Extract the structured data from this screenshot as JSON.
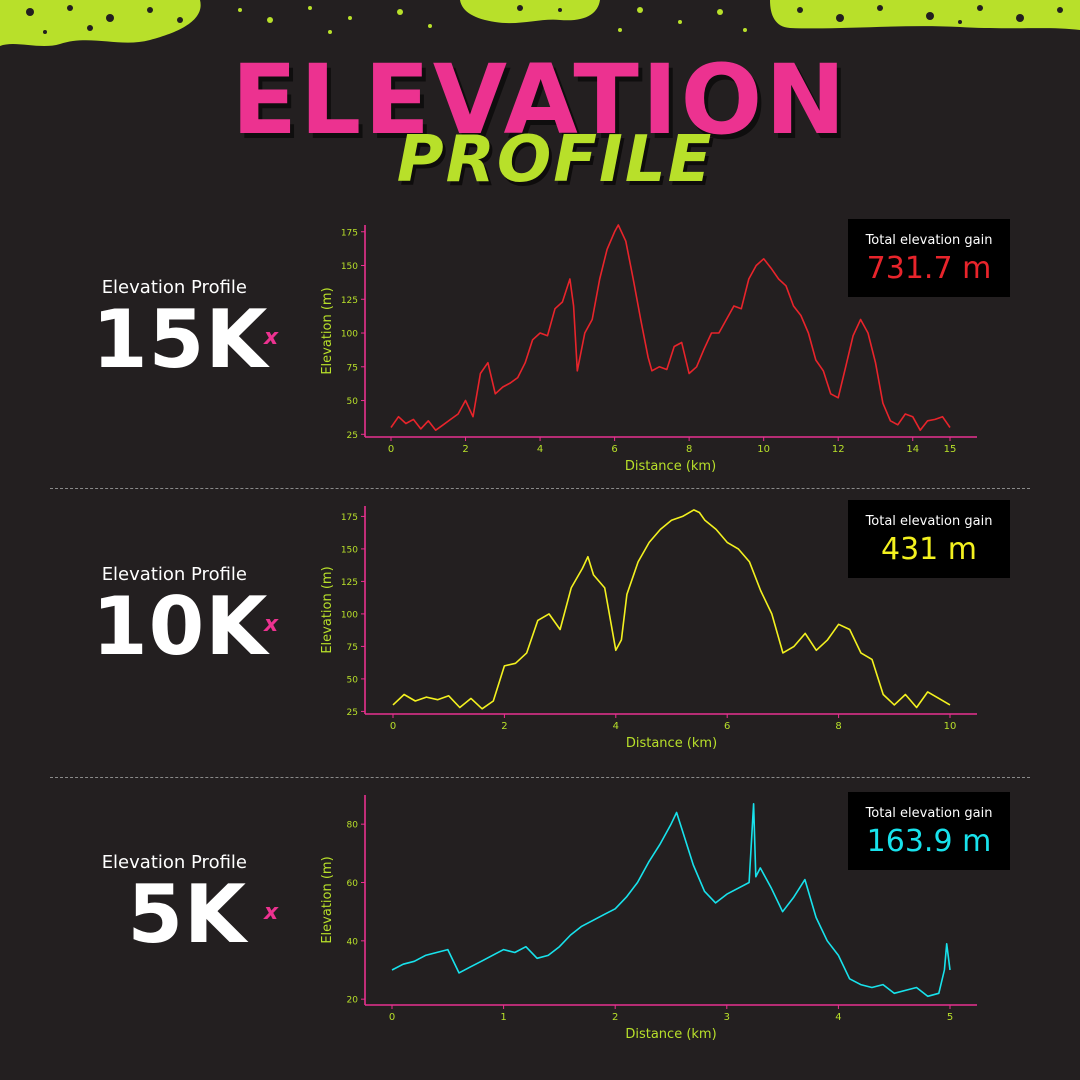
{
  "title": "ELEVATION",
  "subtitle": "PROFILE",
  "colors": {
    "background": "#231f20",
    "pink": "#ec3290",
    "lime": "#b8e02a",
    "axis": "#e8318f",
    "red": "#e8242b",
    "yellow": "#f3f11f",
    "cyan": "#18e2ec"
  },
  "rows": [
    {
      "label": "Elevation Profile",
      "distance": "15K",
      "mark": "x",
      "gain_label": "Total elevation gain",
      "gain_value": "731.7 m"
    },
    {
      "label": "Elevation Profile",
      "distance": "10K",
      "mark": "x",
      "gain_label": "Total elevation gain",
      "gain_value": "431 m"
    },
    {
      "label": "Elevation Profile",
      "distance": "5K",
      "mark": "x",
      "gain_label": "Total elevation gain",
      "gain_value": "163.9 m"
    }
  ],
  "chart_data": [
    {
      "type": "line",
      "xlabel": "Distance (km)",
      "ylabel": "Elevation (m)",
      "color": "#e8242b",
      "xlim": [
        0,
        15
      ],
      "ylim": [
        23,
        180
      ],
      "xticks": [
        0,
        2,
        4,
        6,
        8,
        10,
        12,
        14,
        15
      ],
      "yticks": [
        25,
        50,
        75,
        100,
        125,
        150,
        175
      ],
      "x": [
        0,
        0.2,
        0.4,
        0.6,
        0.8,
        1.0,
        1.2,
        1.4,
        1.6,
        1.8,
        2.0,
        2.2,
        2.4,
        2.6,
        2.8,
        3.0,
        3.2,
        3.4,
        3.6,
        3.8,
        4.0,
        4.2,
        4.4,
        4.6,
        4.8,
        4.9,
        5.0,
        5.2,
        5.4,
        5.6,
        5.8,
        6.0,
        6.1,
        6.3,
        6.5,
        6.7,
        6.9,
        7.0,
        7.2,
        7.4,
        7.6,
        7.8,
        8.0,
        8.2,
        8.4,
        8.6,
        8.8,
        9.0,
        9.2,
        9.4,
        9.6,
        9.8,
        10.0,
        10.2,
        10.4,
        10.6,
        10.8,
        11.0,
        11.2,
        11.4,
        11.6,
        11.8,
        12.0,
        12.2,
        12.4,
        12.6,
        12.8,
        13.0,
        13.2,
        13.4,
        13.6,
        13.8,
        14.0,
        14.2,
        14.4,
        14.6,
        14.8,
        15.0
      ],
      "y": [
        30,
        38,
        33,
        36,
        29,
        35,
        28,
        32,
        36,
        40,
        50,
        38,
        70,
        78,
        55,
        60,
        63,
        67,
        78,
        95,
        100,
        98,
        118,
        123,
        140,
        120,
        72,
        100,
        110,
        140,
        162,
        175,
        180,
        168,
        140,
        110,
        82,
        72,
        75,
        73,
        90,
        93,
        70,
        75,
        88,
        100,
        100,
        110,
        120,
        118,
        140,
        150,
        155,
        148,
        140,
        135,
        120,
        113,
        100,
        80,
        72,
        55,
        52,
        75,
        98,
        110,
        100,
        78,
        48,
        35,
        32,
        40,
        38,
        28,
        35,
        36,
        38,
        30
      ]
    },
    {
      "type": "line",
      "xlabel": "Distance (km)",
      "ylabel": "Elevation (m)",
      "color": "#f3f11f",
      "xlim": [
        0,
        10
      ],
      "ylim": [
        23,
        183
      ],
      "xticks": [
        0,
        2,
        4,
        6,
        8,
        10
      ],
      "yticks": [
        25,
        50,
        75,
        100,
        125,
        150,
        175
      ],
      "x": [
        0,
        0.2,
        0.4,
        0.6,
        0.8,
        1.0,
        1.2,
        1.4,
        1.6,
        1.8,
        2.0,
        2.2,
        2.4,
        2.6,
        2.8,
        3.0,
        3.2,
        3.4,
        3.5,
        3.6,
        3.8,
        4.0,
        4.1,
        4.2,
        4.4,
        4.6,
        4.8,
        5.0,
        5.2,
        5.4,
        5.5,
        5.6,
        5.8,
        6.0,
        6.2,
        6.4,
        6.6,
        6.8,
        7.0,
        7.2,
        7.4,
        7.6,
        7.8,
        8.0,
        8.2,
        8.4,
        8.6,
        8.8,
        9.0,
        9.2,
        9.4,
        9.6,
        9.8,
        10.0
      ],
      "y": [
        30,
        38,
        33,
        36,
        34,
        37,
        28,
        35,
        27,
        33,
        60,
        62,
        70,
        95,
        100,
        88,
        120,
        135,
        144,
        130,
        120,
        72,
        80,
        115,
        140,
        155,
        165,
        172,
        175,
        180,
        178,
        172,
        165,
        155,
        150,
        140,
        118,
        100,
        70,
        75,
        85,
        72,
        80,
        92,
        88,
        70,
        65,
        38,
        30,
        38,
        28,
        40,
        35,
        30
      ]
    },
    {
      "type": "line",
      "xlabel": "Distance (km)",
      "ylabel": "Elevation (m)",
      "color": "#18e2ec",
      "xlim": [
        0,
        5
      ],
      "ylim": [
        18,
        90
      ],
      "xticks": [
        0,
        1,
        2,
        3,
        4,
        5
      ],
      "yticks": [
        20,
        40,
        60,
        80
      ],
      "x": [
        0,
        0.1,
        0.2,
        0.3,
        0.4,
        0.5,
        0.6,
        0.7,
        0.8,
        0.9,
        1.0,
        1.1,
        1.2,
        1.3,
        1.4,
        1.5,
        1.6,
        1.7,
        1.8,
        1.9,
        2.0,
        2.1,
        2.2,
        2.3,
        2.4,
        2.5,
        2.55,
        2.6,
        2.7,
        2.8,
        2.9,
        3.0,
        3.1,
        3.2,
        3.24,
        3.26,
        3.3,
        3.4,
        3.5,
        3.6,
        3.7,
        3.8,
        3.9,
        4.0,
        4.1,
        4.2,
        4.3,
        4.4,
        4.5,
        4.6,
        4.7,
        4.8,
        4.9,
        4.95,
        4.97,
        5.0
      ],
      "y": [
        30,
        32,
        33,
        35,
        36,
        37,
        29,
        31,
        33,
        35,
        37,
        36,
        38,
        34,
        35,
        38,
        42,
        45,
        47,
        49,
        51,
        55,
        60,
        67,
        73,
        80,
        84,
        78,
        66,
        57,
        53,
        56,
        58,
        60,
        87,
        62,
        65,
        58,
        50,
        55,
        61,
        48,
        40,
        35,
        27,
        25,
        24,
        25,
        22,
        23,
        24,
        21,
        22,
        30,
        39,
        30
      ]
    }
  ]
}
